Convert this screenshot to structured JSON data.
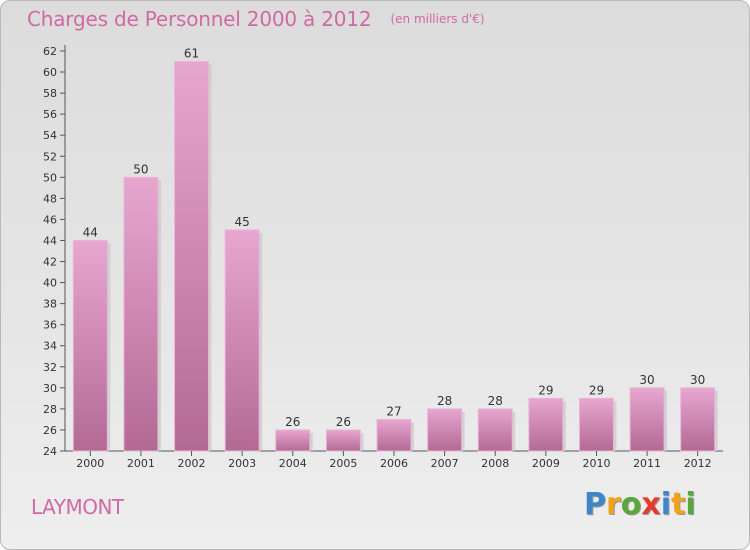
{
  "chart_data": {
    "type": "bar",
    "title": "Charges de Personnel 2000 à 2012",
    "subtitle": "(en milliers d'€)",
    "categories": [
      "2000",
      "2001",
      "2002",
      "2003",
      "2004",
      "2005",
      "2006",
      "2007",
      "2008",
      "2009",
      "2010",
      "2011",
      "2012"
    ],
    "values": [
      44,
      50,
      61,
      45,
      26,
      26,
      27,
      28,
      28,
      29,
      29,
      30,
      30
    ],
    "ylim": [
      24,
      62
    ],
    "ytick_step": 2,
    "grid": false,
    "bar_color": "#d58ebb"
  },
  "commune": "LAYMONT",
  "logo": {
    "letters": [
      {
        "char": "P",
        "color": "#3f86c8"
      },
      {
        "char": "r",
        "color": "#f0a21a"
      },
      {
        "char": "o",
        "color": "#5aa63a"
      },
      {
        "char": "x",
        "color": "#e43b2c"
      },
      {
        "char": "i",
        "color": "#3f86c8"
      },
      {
        "char": "t",
        "color": "#f0a21a"
      },
      {
        "char": "i",
        "color": "#5aa63a"
      }
    ]
  }
}
